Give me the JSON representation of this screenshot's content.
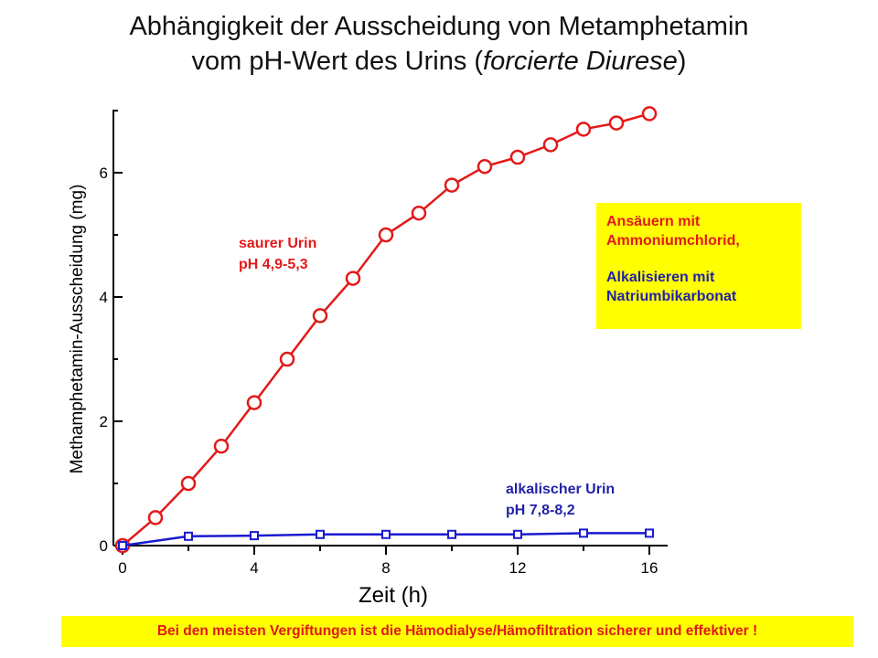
{
  "header": {
    "title_line1": "Abhängigkeit der Ausscheidung von Metamphetamin",
    "title_line2_prefix": "vom pH-Wert des Urins (",
    "title_line2_italic": "forcierte Diurese",
    "title_line2_suffix": ")"
  },
  "info_box": {
    "line1": "Ansäuern mit",
    "line2": "Ammoniumchlorid,",
    "line3": "Alkalisieren mit",
    "line4": "Natriumbikarbonat",
    "colors": {
      "background": "#ffff00",
      "acid_text": "#e21a1a",
      "alkaline_text": "#2222a8"
    }
  },
  "footer": {
    "text": "Bei den meisten Vergiftungen ist die Hämodialyse/Hämofiltration sicherer und effektiver !"
  },
  "chart_data": {
    "type": "line",
    "title": "",
    "xlabel": "Zeit (h)",
    "ylabel": "Methamphetamin-Ausscheidung (mg)",
    "xlim": [
      0,
      16.5
    ],
    "ylim": [
      0,
      7
    ],
    "xticks": [
      0,
      4,
      8,
      12,
      16
    ],
    "xtick_labels": [
      "0",
      "4",
      "8",
      "12",
      "16"
    ],
    "yticks": [
      0,
      2,
      4,
      6
    ],
    "ytick_labels": [
      "0",
      "2",
      "4",
      "6"
    ],
    "grid": false,
    "series": [
      {
        "name": "saurer Urin pH 4,9-5,3",
        "label_line1": "saurer Urin",
        "label_line2": "pH 4,9-5,3",
        "color": "#e21a1a",
        "marker": "circle",
        "x": [
          0,
          1,
          2,
          3,
          4,
          5,
          6,
          7,
          8,
          9,
          10,
          11,
          12,
          13,
          14,
          15,
          16
        ],
        "y": [
          0,
          0.45,
          1.0,
          1.6,
          2.3,
          3.0,
          3.7,
          4.3,
          5.0,
          5.35,
          5.8,
          6.1,
          6.25,
          6.45,
          6.7,
          6.8,
          6.95
        ]
      },
      {
        "name": "alkalischer Urin pH 7,8-8,2",
        "label_line1": "alkalischer Urin",
        "label_line2": "pH 7,8-8,2",
        "color": "#1a1ad0",
        "marker": "square",
        "x": [
          0,
          2,
          4,
          6,
          8,
          10,
          12,
          14,
          16
        ],
        "y": [
          0,
          0.15,
          0.16,
          0.18,
          0.18,
          0.18,
          0.18,
          0.2,
          0.2
        ]
      }
    ]
  }
}
